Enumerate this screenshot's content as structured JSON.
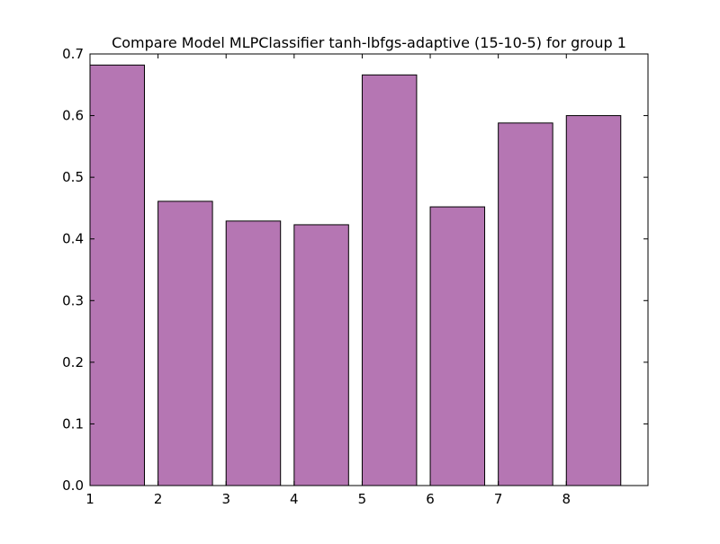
{
  "chart_data": {
    "type": "bar",
    "title": "Compare Model MLPClassifier tanh-lbfgs-adaptive (15-10-5) for group 1",
    "xlabel": "",
    "ylabel": "",
    "bars": [
      {
        "x": 1,
        "value": 0.682
      },
      {
        "x": 2,
        "value": 0.461
      },
      {
        "x": 3,
        "value": 0.429
      },
      {
        "x": 4,
        "value": 0.423
      },
      {
        "x": 5,
        "value": 0.666
      },
      {
        "x": 6,
        "value": 0.452
      },
      {
        "x": 7,
        "value": 0.588
      },
      {
        "x": 8,
        "value": 0.6
      }
    ],
    "bar_width": 0.8,
    "xlim": [
      1,
      9.2
    ],
    "ylim": [
      0.0,
      0.7
    ],
    "x_ticks": [
      1,
      2,
      3,
      4,
      5,
      6,
      7,
      8
    ],
    "x_tick_labels": [
      "1",
      "2",
      "3",
      "4",
      "5",
      "6",
      "7",
      "8"
    ],
    "y_ticks": [
      0.0,
      0.1,
      0.2,
      0.3,
      0.4,
      0.5,
      0.6,
      0.7
    ],
    "y_tick_labels": [
      "0.0",
      "0.1",
      "0.2",
      "0.3",
      "0.4",
      "0.5",
      "0.6",
      "0.7"
    ],
    "grid": false,
    "legend": "none",
    "colors": {
      "bar_fill": "#b576b3",
      "bar_edge": "#000000",
      "axes": "#000000",
      "background": "#ffffff"
    }
  }
}
